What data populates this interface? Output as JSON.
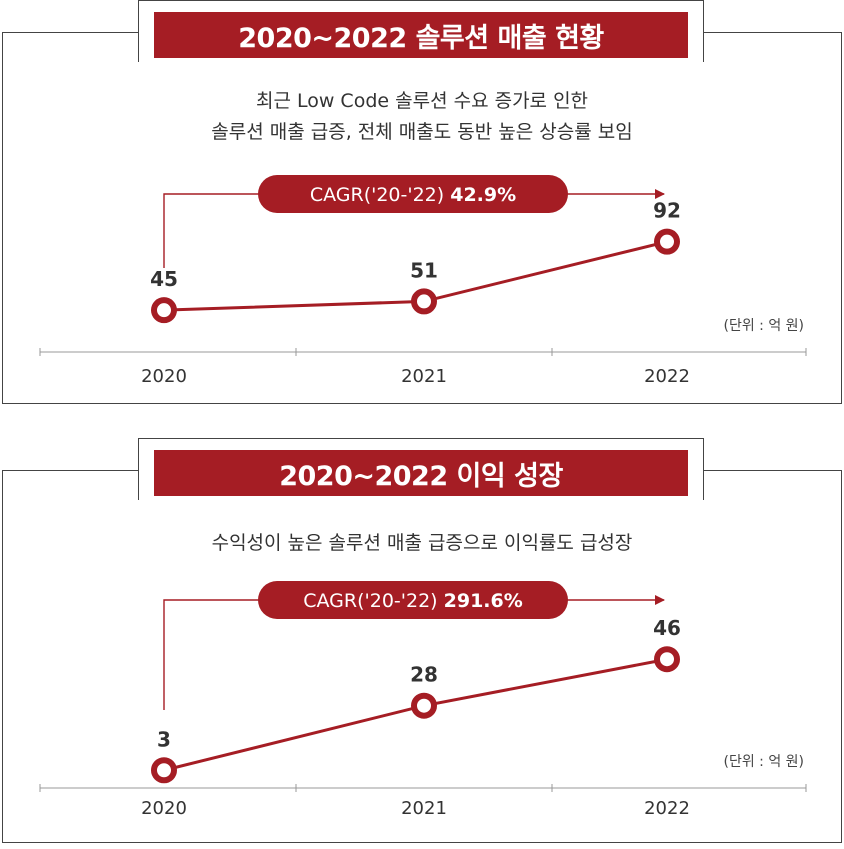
{
  "chart_data": [
    {
      "type": "line",
      "title": "2020~2022 솔루션 매출 현황",
      "subtitle_lines": [
        "최근 Low Code 솔루션 수요 증가로 인한",
        "솔루션 매출 급증, 전체 매출도 동반 높은 상승률 보임"
      ],
      "cagr_label": "CAGR('20-'22)",
      "cagr_value": "42.9%",
      "unit": "(단위 : 억 원)",
      "categories": [
        "2020",
        "2021",
        "2022"
      ],
      "values": [
        45,
        51,
        92
      ],
      "ylim": [
        30,
        100
      ],
      "color": "#a51d24"
    },
    {
      "type": "line",
      "title": "2020~2022 이익 성장",
      "subtitle_lines": [
        "수익성이 높은 솔루션 매출 급증으로 이익률도 급성장"
      ],
      "cagr_label": "CAGR('20-'22)",
      "cagr_value": "291.6%",
      "unit": "(단위 : 억 원)",
      "categories": [
        "2020",
        "2021",
        "2022"
      ],
      "values": [
        3,
        28,
        46
      ],
      "ylim": [
        0,
        55
      ],
      "color": "#a51d24"
    }
  ]
}
